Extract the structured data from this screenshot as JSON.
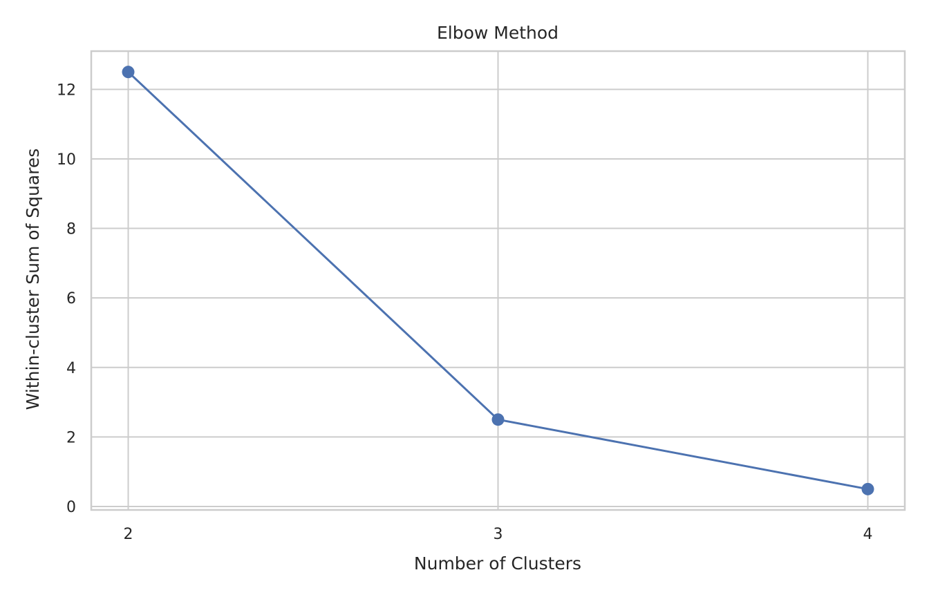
{
  "chart_data": {
    "type": "line",
    "title": "Elbow Method",
    "xlabel": "Number of Clusters",
    "ylabel": "Within-cluster Sum of Squares",
    "x": [
      2,
      3,
      4
    ],
    "series": [
      {
        "values": [
          12.5,
          2.5,
          0.5
        ]
      }
    ],
    "xticks": [
      "2",
      "3",
      "4"
    ],
    "yticks": [
      "0",
      "2",
      "4",
      "6",
      "8",
      "10",
      "12"
    ],
    "xlim": [
      1.9,
      4.1
    ],
    "ylim": [
      -0.1,
      13.1
    ],
    "grid": true,
    "marker": "circle",
    "colors": {
      "line": "#4c72b0",
      "grid": "#cccccc",
      "frame": "#cccccc",
      "text": "#262626"
    }
  }
}
